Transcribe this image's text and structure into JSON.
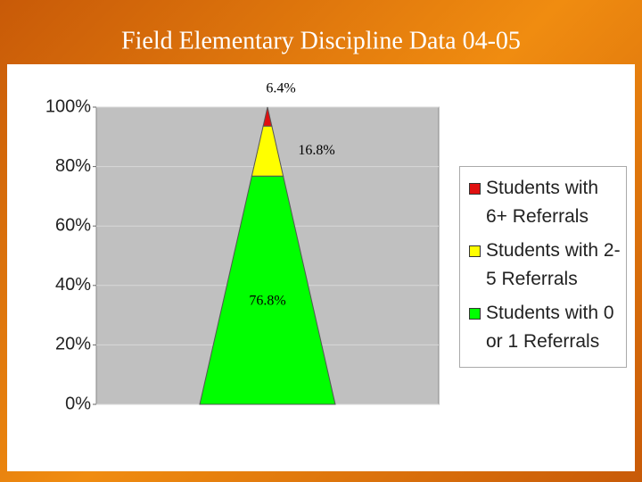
{
  "chart_data": {
    "type": "pyramid",
    "title": "Field Elementary Discipline Data 04-05",
    "series": [
      {
        "name": "Students with 0 or 1 Referrals",
        "color": "#00ff00",
        "values": [
          76.8
        ],
        "value_labels": [
          "76.8%"
        ]
      },
      {
        "name": "Students with 2-5 Referrals",
        "color": "#ffff00",
        "values": [
          16.8
        ],
        "value_labels": [
          "16.8%"
        ]
      },
      {
        "name": "Students with 6+ Referrals",
        "color": "#e01010",
        "values": [
          6.4
        ],
        "value_labels": [
          "6.4%"
        ]
      }
    ],
    "ylim": [
      0,
      100
    ],
    "yticks": [
      {
        "value": 0,
        "label": "0%"
      },
      {
        "value": 20,
        "label": "20%"
      },
      {
        "value": 40,
        "label": "40%"
      },
      {
        "value": 60,
        "label": "60%"
      },
      {
        "value": 80,
        "label": "80%"
      },
      {
        "value": 100,
        "label": "100%"
      }
    ],
    "grid": true
  }
}
